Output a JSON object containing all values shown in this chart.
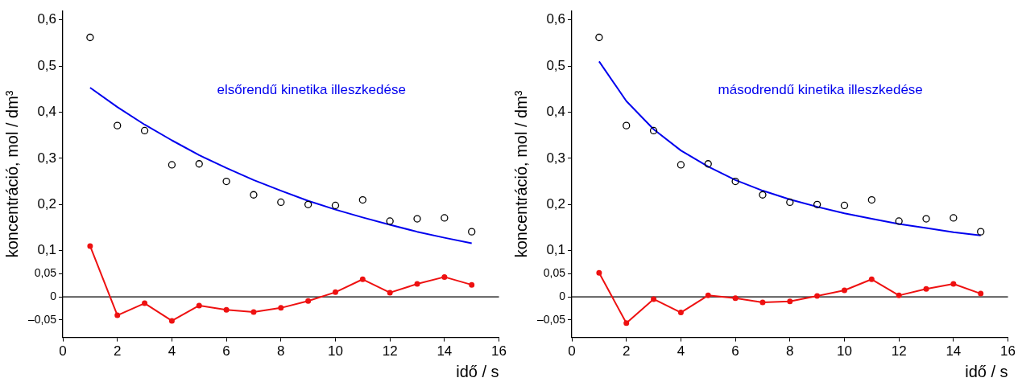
{
  "chart_data": [
    {
      "type": "scatter",
      "xlabel": "idő / s",
      "ylabel": "koncentráció, mol / dm³",
      "x": [
        1,
        2,
        3,
        4,
        5,
        6,
        7,
        8,
        9,
        10,
        11,
        12,
        13,
        14,
        15
      ],
      "xlim": [
        0,
        16
      ],
      "xticks": [
        0,
        2,
        4,
        6,
        8,
        10,
        12,
        14,
        16
      ],
      "ylim": [
        -0.088,
        0.62
      ],
      "yticks": [
        {
          "value": -0.05,
          "label": "–0,05"
        },
        {
          "value": 0,
          "label": "0"
        },
        {
          "value": 0.05,
          "label": "0,05"
        },
        {
          "value": 0.1,
          "label": "0,1"
        },
        {
          "value": 0.2,
          "label": "0,2"
        },
        {
          "value": 0.3,
          "label": "0,3"
        },
        {
          "value": 0.4,
          "label": "0,4"
        },
        {
          "value": 0.5,
          "label": "0,5"
        },
        {
          "value": 0.6,
          "label": "0,6"
        }
      ],
      "grid": false,
      "legend": false,
      "ref_lines": [
        {
          "axis": "y",
          "value": 0,
          "color": "#000000"
        }
      ],
      "annotations": [
        "elsőrendű kinetika illeszkedése"
      ],
      "series": [
        {
          "type": "scatter",
          "marker": "circle",
          "color": "#000000",
          "values": [
            0.562,
            0.371,
            0.36,
            0.286,
            0.288,
            0.25,
            0.221,
            0.205,
            0.2,
            0.198,
            0.21,
            0.164,
            0.169,
            0.171,
            0.141
          ]
        },
        {
          "type": "line",
          "marker": "none",
          "color": "#0000ee",
          "values": [
            0.453,
            0.411,
            0.373,
            0.339,
            0.307,
            0.279,
            0.253,
            0.23,
            0.208,
            0.189,
            0.172,
            0.156,
            0.141,
            0.128,
            0.116
          ]
        },
        {
          "type": "line",
          "marker": "circle",
          "color": "#ee1111",
          "values": [
            0.11,
            -0.04,
            -0.014,
            -0.052,
            -0.019,
            -0.028,
            -0.033,
            -0.024,
            -0.009,
            0.01,
            0.038,
            0.009,
            0.028,
            0.043,
            0.026
          ]
        }
      ]
    },
    {
      "type": "scatter",
      "xlabel": "idő / s",
      "ylabel": "koncentráció, mol / dm³",
      "x": [
        1,
        2,
        3,
        4,
        5,
        6,
        7,
        8,
        9,
        10,
        11,
        12,
        13,
        14,
        15
      ],
      "xlim": [
        0,
        16
      ],
      "xticks": [
        0,
        2,
        4,
        6,
        8,
        10,
        12,
        14,
        16
      ],
      "ylim": [
        -0.088,
        0.62
      ],
      "yticks": [
        {
          "value": -0.05,
          "label": "–0,05"
        },
        {
          "value": 0,
          "label": "0"
        },
        {
          "value": 0.05,
          "label": "0,05"
        },
        {
          "value": 0.1,
          "label": "0,1"
        },
        {
          "value": 0.2,
          "label": "0,2"
        },
        {
          "value": 0.3,
          "label": "0,3"
        },
        {
          "value": 0.4,
          "label": "0,4"
        },
        {
          "value": 0.5,
          "label": "0,5"
        },
        {
          "value": 0.6,
          "label": "0,6"
        }
      ],
      "grid": false,
      "legend": false,
      "ref_lines": [
        {
          "axis": "y",
          "value": 0,
          "color": "#000000"
        }
      ],
      "annotations": [
        "másodrendű kinetika illeszkedése"
      ],
      "series": [
        {
          "type": "scatter",
          "marker": "circle",
          "color": "#000000",
          "values": [
            0.562,
            0.371,
            0.36,
            0.286,
            0.288,
            0.25,
            0.221,
            0.205,
            0.2,
            0.198,
            0.21,
            0.164,
            0.169,
            0.171,
            0.141
          ]
        },
        {
          "type": "line",
          "marker": "none",
          "color": "#0000ee",
          "values": [
            0.51,
            0.424,
            0.363,
            0.317,
            0.282,
            0.253,
            0.23,
            0.211,
            0.195,
            0.181,
            0.169,
            0.158,
            0.149,
            0.14,
            0.133
          ]
        },
        {
          "type": "line",
          "marker": "circle",
          "color": "#ee1111",
          "values": [
            0.052,
            -0.057,
            -0.005,
            -0.034,
            0.003,
            -0.003,
            -0.012,
            -0.01,
            0.002,
            0.014,
            0.038,
            0.003,
            0.017,
            0.028,
            0.007
          ]
        }
      ]
    }
  ]
}
